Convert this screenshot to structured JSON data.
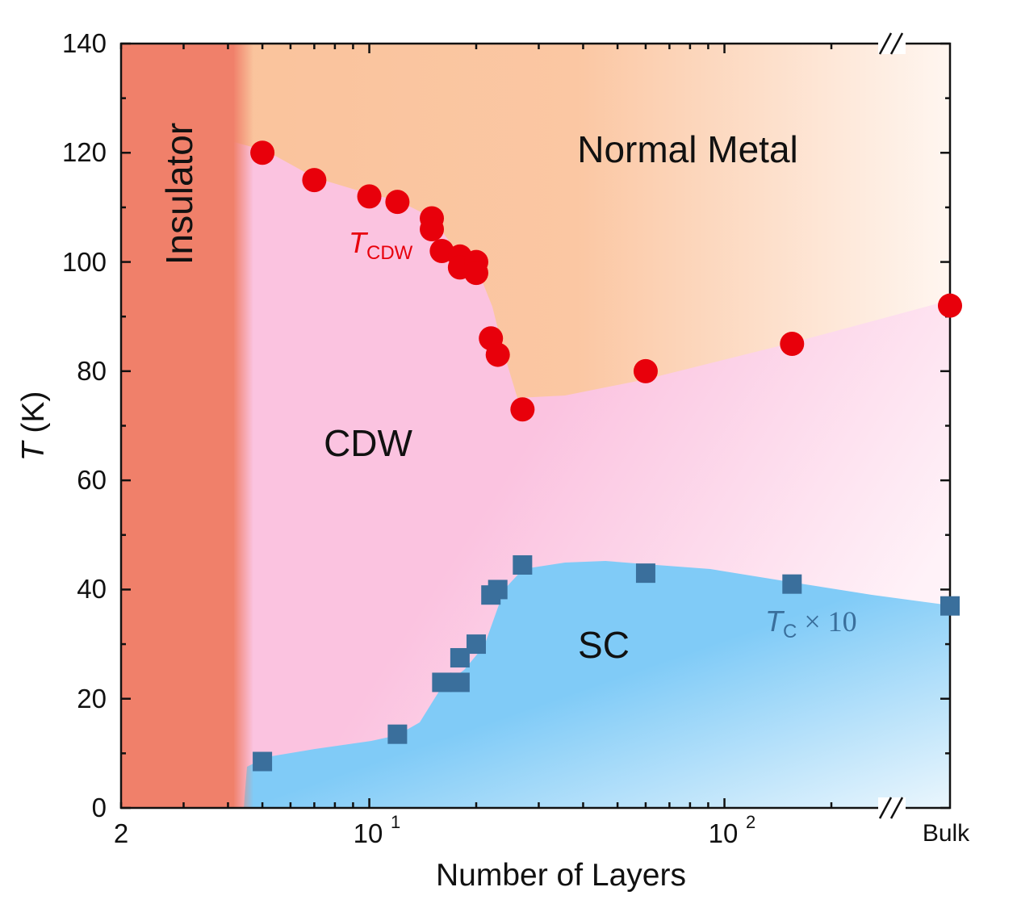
{
  "chart_data": {
    "type": "scatter",
    "xlabel": "Number of Layers",
    "ylabel": "T (K)",
    "xscale": "log",
    "x_tick_labels": [
      "2",
      "10",
      "1",
      "10",
      "2",
      "Bulk"
    ],
    "ylim": [
      0,
      140
    ],
    "y_ticks": [
      0,
      20,
      40,
      60,
      80,
      100,
      120,
      140
    ],
    "y_tick_labels": [
      "0",
      "20",
      "40",
      "60",
      "80",
      "100",
      "120",
      "140"
    ],
    "axis_break": "before Bulk",
    "regions": {
      "insulator": "Insulator",
      "normal_metal": "Normal Metal",
      "cdw": "CDW",
      "sc": "SC"
    },
    "series": [
      {
        "name": "T_CDW",
        "label_main": "T",
        "label_sub": "CDW",
        "marker": "circle",
        "color": "#e8000b",
        "points": [
          {
            "x": 5,
            "y": 120
          },
          {
            "x": 7,
            "y": 115
          },
          {
            "x": 10,
            "y": 112
          },
          {
            "x": 12,
            "y": 111
          },
          {
            "x": 15,
            "y": 108
          },
          {
            "x": 15,
            "y": 106
          },
          {
            "x": 16,
            "y": 102
          },
          {
            "x": 18,
            "y": 101
          },
          {
            "x": 18,
            "y": 99
          },
          {
            "x": 20,
            "y": 100
          },
          {
            "x": 20,
            "y": 98
          },
          {
            "x": 22,
            "y": 86
          },
          {
            "x": 23,
            "y": 83
          },
          {
            "x": 27,
            "y": 73
          },
          {
            "x": 60,
            "y": 80
          },
          {
            "x": 155,
            "y": 85
          },
          {
            "x": "Bulk",
            "y": 92
          }
        ]
      },
      {
        "name": "T_C × 10",
        "label_main": "T",
        "label_sub": "C",
        "label_suffix": " × 10",
        "marker": "square",
        "color": "#3a6f9c",
        "points": [
          {
            "x": 5,
            "y": 8.5
          },
          {
            "x": 12,
            "y": 13.5
          },
          {
            "x": 16,
            "y": 23
          },
          {
            "x": 18,
            "y": 23
          },
          {
            "x": 18,
            "y": 27.5
          },
          {
            "x": 20,
            "y": 30
          },
          {
            "x": 22,
            "y": 39
          },
          {
            "x": 23,
            "y": 40
          },
          {
            "x": 27,
            "y": 44.5
          },
          {
            "x": 60,
            "y": 43
          },
          {
            "x": 155,
            "y": 41
          },
          {
            "x": "Bulk",
            "y": 37
          }
        ]
      }
    ],
    "colors": {
      "insulator": "#f0806a",
      "normal_metal": "#f9c29a",
      "cdw": "#fbc3e0",
      "sc": "#80cbf7",
      "cdw_marker": "#e8000b",
      "sc_marker": "#3a6f9c"
    }
  }
}
